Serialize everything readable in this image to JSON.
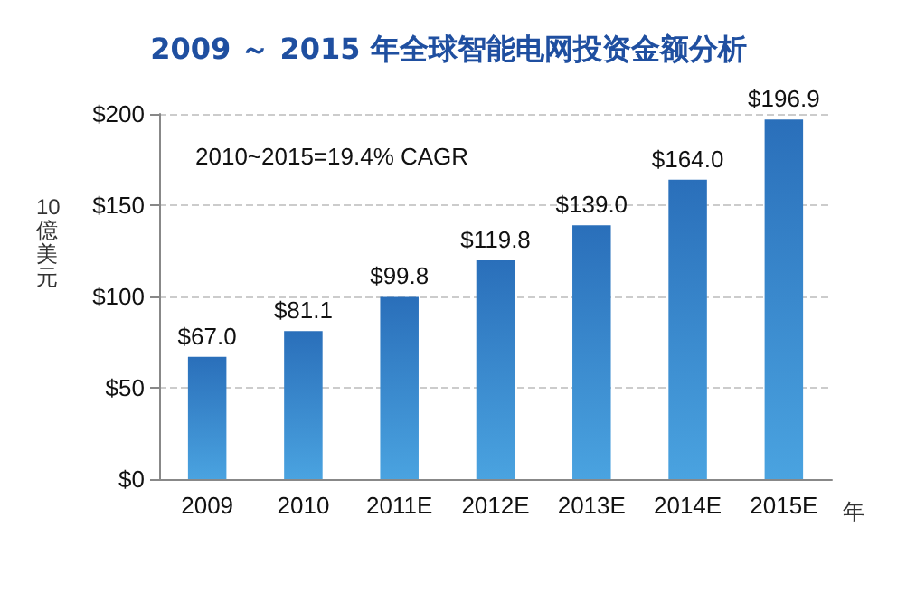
{
  "chart_data": {
    "type": "bar",
    "title": "2009 ～ 2015 年全球智能电网投资金额分析",
    "ylabel": "10億美元",
    "xlabel": "年",
    "categories": [
      "2009",
      "2010",
      "2011E",
      "2012E",
      "2013E",
      "2014E",
      "2015E"
    ],
    "values": [
      67.0,
      81.1,
      99.8,
      119.8,
      139.0,
      164.0,
      196.9
    ],
    "value_labels": [
      "$67.0",
      "$81.1",
      "$99.8",
      "$119.8",
      "$139.0",
      "$164.0",
      "$196.9"
    ],
    "color": "#2a6fba",
    "ylim": [
      0,
      200
    ],
    "yticks": [
      {
        "value": 0,
        "label": "$0"
      },
      {
        "value": 50,
        "label": "$50"
      },
      {
        "value": 100,
        "label": "$100"
      },
      {
        "value": 150,
        "label": "$150"
      },
      {
        "value": 200,
        "label": "$200"
      }
    ],
    "grid": "y",
    "annotations": [
      "2010~2015=19.4% CAGR"
    ]
  }
}
